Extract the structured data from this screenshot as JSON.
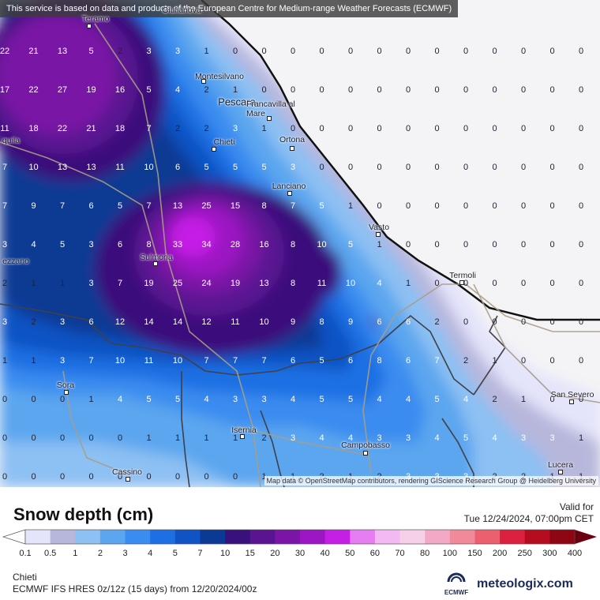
{
  "header": {
    "notice": "This service is based on data and products of the European Centre for Medium-range Weather Forecasts (ECMWF)"
  },
  "map": {
    "attribution": "Map data © OpenStreetMap contributors, rendering GIScience Research Group @ Heidelberg University",
    "cities": [
      {
        "name": "Teramo"
      },
      {
        "name": "Montesilvano"
      },
      {
        "name": "Pescara"
      },
      {
        "name": "Francavilla al Mare"
      },
      {
        "name": "Chieti"
      },
      {
        "name": "Ortona"
      },
      {
        "name": "quila"
      },
      {
        "name": "Lanciano"
      },
      {
        "name": "Vasto"
      },
      {
        "name": "Termoli"
      },
      {
        "name": "Sulmona"
      },
      {
        "name": "ezzano"
      },
      {
        "name": "Sora"
      },
      {
        "name": "Isernia"
      },
      {
        "name": "Campobasso"
      },
      {
        "name": "San Severo"
      },
      {
        "name": "Lucera"
      },
      {
        "name": "Cassino"
      },
      {
        "name": "Giulianova"
      }
    ],
    "grid_values": [
      [
        "22",
        "21",
        "13",
        "5",
        "2",
        "3",
        "3",
        "1",
        "0",
        "0",
        "0",
        "0",
        "0",
        "0",
        "0",
        "0",
        "0",
        "0",
        "0",
        "0",
        "0"
      ],
      [
        "17",
        "22",
        "27",
        "19",
        "16",
        "5",
        "4",
        "2",
        "1",
        "0",
        "0",
        "0",
        "0",
        "0",
        "0",
        "0",
        "0",
        "0",
        "0",
        "0",
        "0"
      ],
      [
        "11",
        "18",
        "22",
        "21",
        "18",
        "7",
        "2",
        "2",
        "3",
        "1",
        "0",
        "0",
        "0",
        "0",
        "0",
        "0",
        "0",
        "0",
        "0",
        "0",
        "0"
      ],
      [
        "7",
        "10",
        "13",
        "13",
        "11",
        "10",
        "6",
        "5",
        "5",
        "5",
        "3",
        "0",
        "0",
        "0",
        "0",
        "0",
        "0",
        "0",
        "0",
        "0",
        "0"
      ],
      [
        "7",
        "9",
        "7",
        "6",
        "5",
        "7",
        "13",
        "25",
        "15",
        "8",
        "7",
        "5",
        "1",
        "0",
        "0",
        "0",
        "0",
        "0",
        "0",
        "0",
        "0"
      ],
      [
        "3",
        "4",
        "5",
        "3",
        "6",
        "8",
        "33",
        "34",
        "28",
        "16",
        "8",
        "10",
        "5",
        "1",
        "0",
        "0",
        "0",
        "0",
        "0",
        "0",
        "0"
      ],
      [
        "2",
        "1",
        "1",
        "3",
        "7",
        "19",
        "25",
        "24",
        "19",
        "13",
        "8",
        "11",
        "10",
        "4",
        "1",
        "0",
        "0",
        "0",
        "0",
        "0",
        "0"
      ],
      [
        "3",
        "2",
        "3",
        "6",
        "12",
        "14",
        "14",
        "12",
        "11",
        "10",
        "9",
        "8",
        "9",
        "6",
        "6",
        "2",
        "0",
        "0",
        "0",
        "0",
        "0"
      ],
      [
        "1",
        "1",
        "3",
        "7",
        "10",
        "11",
        "10",
        "7",
        "7",
        "7",
        "6",
        "5",
        "6",
        "8",
        "6",
        "7",
        "2",
        "1",
        "0",
        "0",
        "0"
      ],
      [
        "0",
        "0",
        "0",
        "1",
        "4",
        "5",
        "5",
        "4",
        "3",
        "3",
        "4",
        "5",
        "5",
        "4",
        "4",
        "5",
        "4",
        "2",
        "1",
        "0",
        "0"
      ],
      [
        "0",
        "0",
        "0",
        "0",
        "0",
        "1",
        "1",
        "1",
        "1",
        "2",
        "3",
        "4",
        "4",
        "3",
        "3",
        "4",
        "5",
        "4",
        "3",
        "3",
        "1"
      ],
      [
        "0",
        "0",
        "0",
        "0",
        "0",
        "0",
        "0",
        "0",
        "0",
        "1",
        "1",
        "2",
        "1",
        "2",
        "3",
        "3",
        "3",
        "2",
        "2",
        "1",
        "1"
      ]
    ]
  },
  "legend": {
    "title": "Snow depth (cm)",
    "valid_label": "Valid for",
    "valid_time": "Tue 12/24/2024, 07:00pm CET",
    "ticks": [
      "0.1",
      "0.5",
      "1",
      "2",
      "3",
      "4",
      "5",
      "7",
      "10",
      "15",
      "20",
      "30",
      "40",
      "50",
      "60",
      "70",
      "80",
      "100",
      "150",
      "200",
      "250",
      "300",
      "400"
    ],
    "colors": [
      "#e4e4fb",
      "#b7b7dc",
      "#8dc0f3",
      "#5ba6ef",
      "#3a8cf0",
      "#1e6fe3",
      "#1053c4",
      "#0b3a94",
      "#3a117c",
      "#5a1492",
      "#7a15a6",
      "#9c16c3",
      "#c51fe6",
      "#e67df2",
      "#f3b9f3",
      "#f6cfe9",
      "#f3a9c6",
      "#f08a9a",
      "#ec5f6e",
      "#dc2040",
      "#b50d1f",
      "#8e0514",
      "#6b0010"
    ],
    "location": "Chieti",
    "model_run": "ECMWF IFS HRES 0z/12z (15 days) from 12/20/2024/00z",
    "ecmwf_label": "ECMWF",
    "brand": "meteologix.com"
  }
}
